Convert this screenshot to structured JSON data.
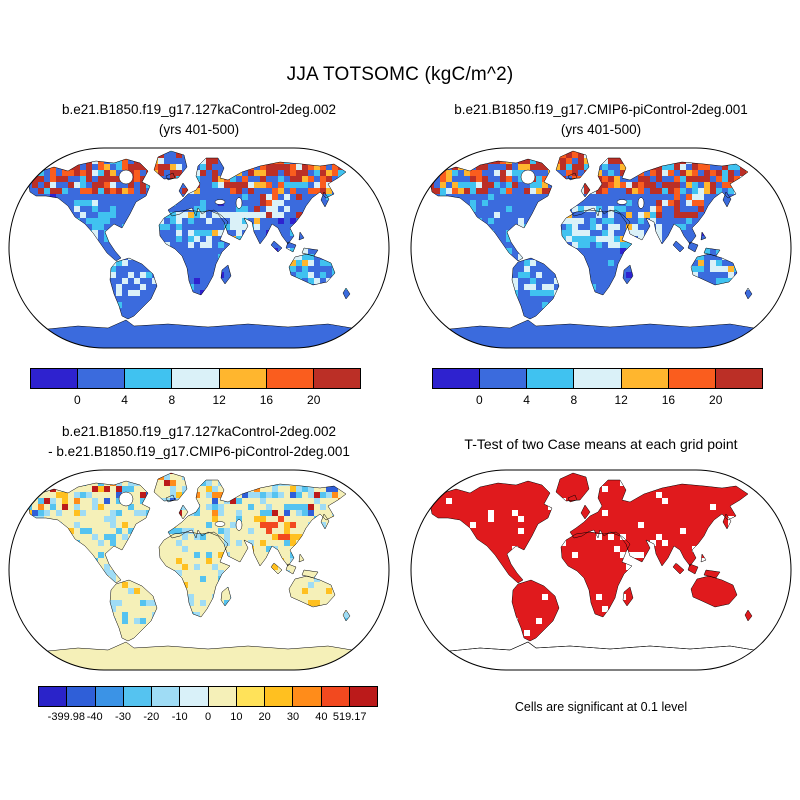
{
  "title": "JJA TOTSOMC (kgC/m^2)",
  "panels": {
    "case1": {
      "title_line1": "b.e21.B1850.f19_g17.127kaControl-2deg.002",
      "title_line2": "(yrs 401-500)"
    },
    "case2": {
      "title_line1": "b.e21.B1850.f19_g17.CMIP6-piControl-2deg.001",
      "title_line2": "(yrs 401-500)"
    },
    "diff": {
      "title_line1": "b.e21.B1850.f19_g17.127kaControl-2deg.002",
      "title_line2": "- b.e21.B1850.f19_g17.CMIP6-piControl-2deg.001"
    },
    "ttest": {
      "title": "T-Test of two Case means at each grid point",
      "caption": "Cells are significant at 0.1 level"
    }
  },
  "chart_data": [
    {
      "id": "case1",
      "type": "heatmap",
      "chart": "global land map, Robinson projection",
      "title": "b.e21.B1850.f19_g17.127kaControl-2deg.002 (yrs 401-500)",
      "variable": "JJA TOTSOMC (kgC/m^2)",
      "colorbar": {
        "ticks": [
          "0",
          "4",
          "8",
          "12",
          "16",
          "20"
        ],
        "colors": [
          "#2e22cf",
          "#3b6bdd",
          "#40c2f0",
          "#daf1f8",
          "#ffb62e",
          "#fa5d1e",
          "#bb2f26"
        ]
      },
      "land_base_value_range": "0-4 (blue) over most mid/low-latitude land",
      "high_values": "8 to >20 (yellow/orange/red) across boreal North America, Siberia and Tibetan Plateau margins; pale (4-12) patches in Sahara, Arabia, Australia, central South America; Antarctica uniform 0-4"
    },
    {
      "id": "case2",
      "type": "heatmap",
      "chart": "global land map, Robinson projection",
      "title": "b.e21.B1850.f19_g17.CMIP6-piControl-2deg.001 (yrs 401-500)",
      "variable": "JJA TOTSOMC (kgC/m^2)",
      "colorbar": {
        "ticks": [
          "0",
          "4",
          "8",
          "12",
          "16",
          "20"
        ],
        "colors": [
          "#2e22cf",
          "#3b6bdd",
          "#40c2f0",
          "#daf1f8",
          "#ffb62e",
          "#fa5d1e",
          "#bb2f26"
        ]
      },
      "land_base_value_range": "0-4 (blue) over most mid/low-latitude land",
      "high_values": "8 to >20 (yellow/orange/red) across boreal North America, Siberia; distribution very similar to case1"
    },
    {
      "id": "diff",
      "type": "heatmap",
      "chart": "global land difference map, Robinson projection",
      "title": "b.e21.B1850.f19_g17.127kaControl-2deg.002 - b.e21.B1850.f19_g17.CMIP6-piControl-2deg.001",
      "variable": "JJA TOTSOMC difference (kgC/m^2)",
      "colorbar": {
        "ticks": [
          "-399.98",
          "-40",
          "-30",
          "-20",
          "-10",
          "0",
          "10",
          "20",
          "30",
          "40",
          "519.17"
        ],
        "colors": [
          "#2a23c9",
          "#2f5fd8",
          "#3b93e6",
          "#55c3f0",
          "#9fdcf5",
          "#d9f1f9",
          "#f5f0b8",
          "#ffe259",
          "#ffc020",
          "#ff8c1a",
          "#f2491f",
          "#bb1a1a"
        ]
      },
      "min_value": -399.98,
      "max_value": 519.17,
      "pattern": "mostly near-zero (pale yellow) land, scattered weak negative (light blue) patches, strongest +/- anomalies at boreal high latitudes and Tibetan Plateau"
    },
    {
      "id": "ttest",
      "type": "heatmap",
      "chart": "global significance mask, Robinson projection",
      "title": "T-Test of two Case means at each grid point",
      "caption": "Cells are significant at 0.1 level",
      "significant_color": "#e01a1d",
      "pattern": "nearly all vegetated land cells significant (solid red) with scattered non-significant white holes, mainly over the Sahara; Antarctica unshaded"
    }
  ]
}
